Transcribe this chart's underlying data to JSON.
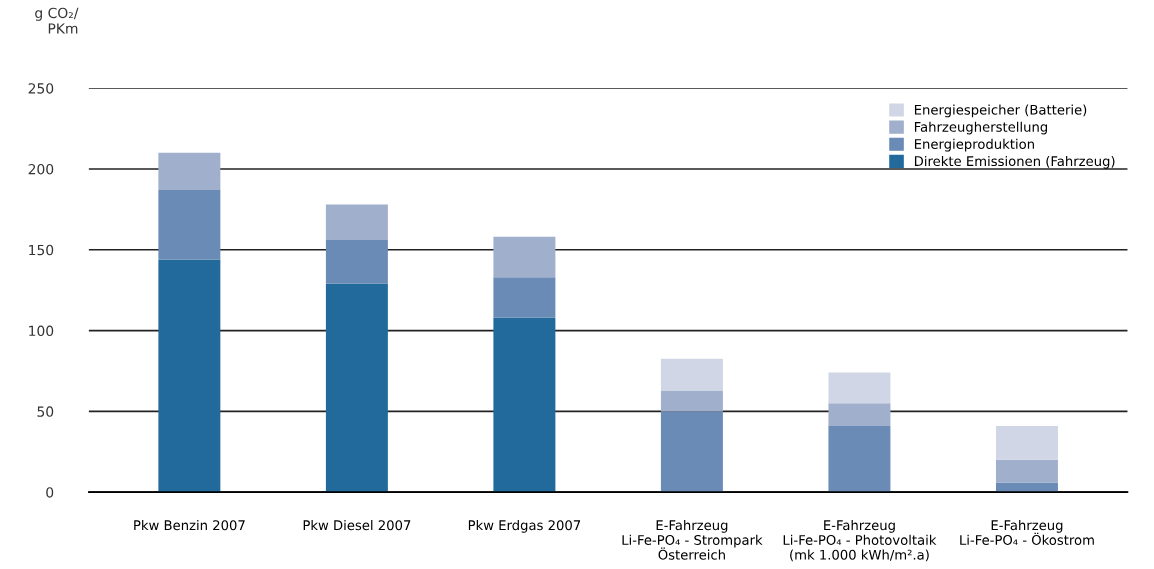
{
  "chart_data": {
    "type": "bar",
    "stacked": true,
    "ylabel": "g CO₂/\nPKm",
    "categories": [
      "Pkw Benzin 2007",
      "Pkw Diesel 2007",
      "Pkw Erdgas 2007",
      "E-Fahrzeug\nLi-Fe-PO₄ - Strompark\nÖsterreich",
      "E-Fahrzeug\nLi-Fe-PO₄ - Photovoltaik\n(mk 1.000 kWh/m².a)",
      "E-Fahrzeug\nLi-Fe-PO₄ - Ökostrom"
    ],
    "series": [
      {
        "name": "Direkte Emissionen (Fahrzeug)",
        "color": "#226a9c",
        "values": [
          144,
          129,
          108,
          null,
          null,
          null
        ]
      },
      {
        "name": "Energieproduktion",
        "color": "#6a8bb5",
        "values": [
          43,
          27,
          25,
          50,
          41,
          6
        ]
      },
      {
        "name": "Fahrzeugherstellung",
        "color": "#a0afcc",
        "values": [
          23,
          22,
          25,
          13,
          14,
          14
        ]
      },
      {
        "name": "Energiespeicher (Batterie)",
        "color": "#d0d6e6",
        "values": [
          null,
          null,
          null,
          19.5,
          19,
          21
        ]
      }
    ],
    "ylim": [
      0,
      250
    ],
    "yticks": [
      0,
      50,
      100,
      150,
      200,
      250
    ],
    "grid": "y",
    "legend": "top right"
  }
}
